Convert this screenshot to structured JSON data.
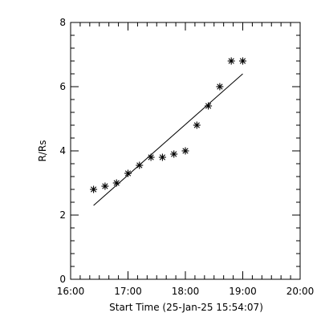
{
  "colors": {
    "background": "#ffffff",
    "foreground": "#000000"
  },
  "chart_data": {
    "type": "scatter",
    "title": "",
    "xlabel": "Start Time (25-Jan-25 15:54:07)",
    "ylabel": "R/Rs",
    "x_unit": "hours",
    "xlim": [
      16.0,
      20.0
    ],
    "ylim": [
      0,
      8
    ],
    "x_ticks": [
      {
        "value": 16.0,
        "label": "16:00"
      },
      {
        "value": 17.0,
        "label": "17:00"
      },
      {
        "value": 18.0,
        "label": "18:00"
      },
      {
        "value": 19.0,
        "label": "19:00"
      },
      {
        "value": 20.0,
        "label": "20:00"
      }
    ],
    "y_ticks": [
      {
        "value": 0,
        "label": "0"
      },
      {
        "value": 2,
        "label": "2"
      },
      {
        "value": 4,
        "label": "4"
      },
      {
        "value": 6,
        "label": "6"
      },
      {
        "value": 8,
        "label": "8"
      }
    ],
    "grid": false,
    "legend": "none",
    "marker": "asterisk",
    "points": [
      {
        "x": 16.4,
        "y": 2.8
      },
      {
        "x": 16.6,
        "y": 2.9
      },
      {
        "x": 16.8,
        "y": 3.0
      },
      {
        "x": 17.0,
        "y": 3.3
      },
      {
        "x": 17.2,
        "y": 3.55
      },
      {
        "x": 17.4,
        "y": 3.8
      },
      {
        "x": 17.6,
        "y": 3.8
      },
      {
        "x": 17.8,
        "y": 3.9
      },
      {
        "x": 18.0,
        "y": 4.0
      },
      {
        "x": 18.2,
        "y": 4.8
      },
      {
        "x": 18.4,
        "y": 5.4
      },
      {
        "x": 18.6,
        "y": 6.0
      },
      {
        "x": 18.8,
        "y": 6.8
      },
      {
        "x": 19.0,
        "y": 6.8
      }
    ],
    "fit_line": {
      "x": [
        16.4,
        19.0
      ],
      "y": [
        2.3,
        6.4
      ]
    }
  }
}
